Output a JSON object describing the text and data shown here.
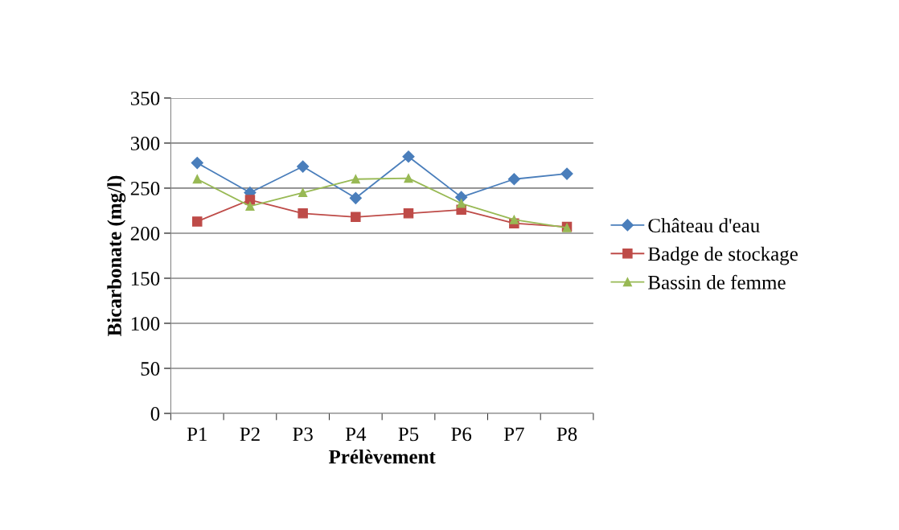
{
  "chart_data": {
    "type": "line",
    "xlabel": "Prélèvement",
    "ylabel": "Bicarbonate (mg/l)",
    "categories": [
      "P1",
      "P2",
      "P3",
      "P4",
      "P5",
      "P6",
      "P7",
      "P8"
    ],
    "series": [
      {
        "name": "Château d'eau",
        "color": "#4a7ebb",
        "marker": "diamond",
        "values": [
          278,
          245,
          274,
          239,
          285,
          240,
          260,
          266
        ]
      },
      {
        "name": "Badge de stockage",
        "color": "#be4b48",
        "marker": "square",
        "values": [
          213,
          237,
          222,
          218,
          222,
          226,
          211,
          207
        ]
      },
      {
        "name": "Bassin de femme",
        "color": "#98b954",
        "marker": "triangle",
        "values": [
          260,
          230,
          245,
          260,
          261,
          233,
          215,
          206
        ]
      }
    ],
    "ylim": [
      0,
      350
    ],
    "yticks": [
      0,
      50,
      100,
      150,
      200,
      250,
      300,
      350
    ],
    "grid": "y",
    "legend": "right"
  }
}
